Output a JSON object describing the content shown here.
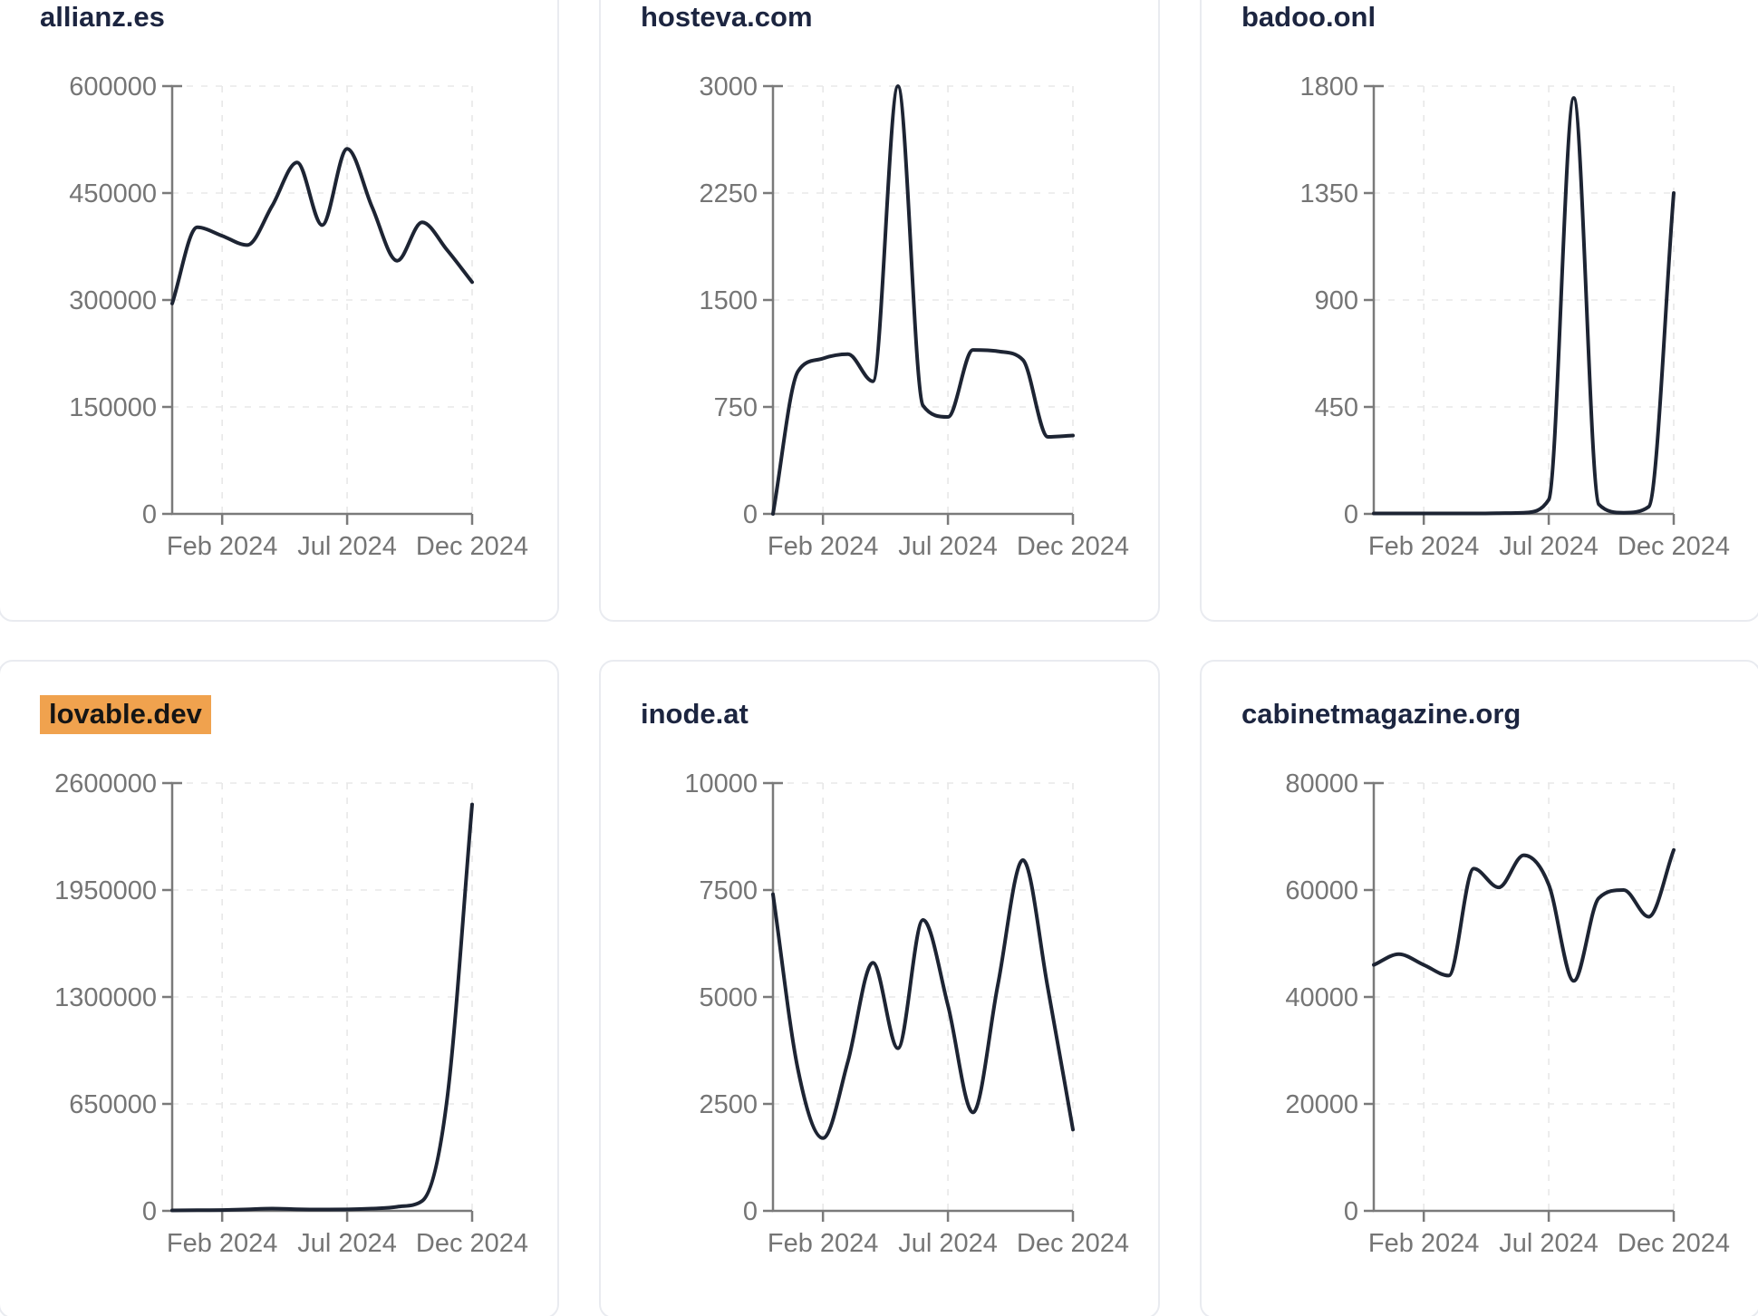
{
  "style": {
    "page_background": "#ffffff",
    "card_background": "#ffffff",
    "card_border_color": "#e9ebf0",
    "title_color": "#1c2540",
    "highlight_background": "#f0a24e",
    "highlight_text_color": "#151515",
    "line_color": "#1d2433",
    "axis_color": "#7a7a7a",
    "tick_label_color": "#757575",
    "grid_color": "#e8e8e8"
  },
  "chart_data": [
    {
      "type": "line",
      "title": "allianz.es",
      "highlighted": false,
      "x": [
        "2023-12",
        "2024-01",
        "2024-02",
        "2024-03",
        "2024-04",
        "2024-05",
        "2024-06",
        "2024-07",
        "2024-08",
        "2024-09",
        "2024-10",
        "2024-11",
        "2024-12"
      ],
      "values": [
        295000,
        402000,
        390000,
        377000,
        432000,
        493000,
        405000,
        512000,
        430000,
        355000,
        409000,
        370000,
        325000
      ],
      "y_ticks": [
        0,
        150000,
        300000,
        450000,
        600000
      ],
      "ylim": [
        0,
        600000
      ],
      "x_tick_labels": [
        "Feb 2024",
        "Jul 2024",
        "Dec 2024"
      ],
      "x_tick_positions": [
        2,
        7,
        12
      ],
      "grid": "dashed",
      "legend": "none"
    },
    {
      "type": "line",
      "title": "hosteva.com",
      "highlighted": false,
      "x": [
        "2023-12",
        "2024-01",
        "2024-02",
        "2024-03",
        "2024-04",
        "2024-05",
        "2024-06",
        "2024-07",
        "2024-08",
        "2024-09",
        "2024-10",
        "2024-11",
        "2024-12"
      ],
      "values": [
        0,
        1000,
        1090,
        1120,
        930,
        3000,
        760,
        680,
        1150,
        1140,
        1080,
        540,
        550
      ],
      "y_ticks": [
        0,
        750,
        1500,
        2250,
        3000
      ],
      "ylim": [
        0,
        3000
      ],
      "x_tick_labels": [
        "Feb 2024",
        "Jul 2024",
        "Dec 2024"
      ],
      "x_tick_positions": [
        2,
        7,
        12
      ],
      "grid": "dashed",
      "legend": "none"
    },
    {
      "type": "line",
      "title": "badoo.onl",
      "highlighted": false,
      "x": [
        "2023-12",
        "2024-01",
        "2024-02",
        "2024-03",
        "2024-04",
        "2024-05",
        "2024-06",
        "2024-07",
        "2024-08",
        "2024-09",
        "2024-10",
        "2024-11",
        "2024-12"
      ],
      "values": [
        2,
        2,
        2,
        2,
        2,
        3,
        5,
        60,
        1750,
        40,
        5,
        30,
        1350
      ],
      "y_ticks": [
        0,
        450,
        900,
        1350,
        1800
      ],
      "ylim": [
        0,
        1800
      ],
      "x_tick_labels": [
        "Feb 2024",
        "Jul 2024",
        "Dec 2024"
      ],
      "x_tick_positions": [
        2,
        7,
        12
      ],
      "grid": "dashed",
      "legend": "none"
    },
    {
      "type": "line",
      "title": "lovable.dev",
      "highlighted": true,
      "x": [
        "2023-12",
        "2024-01",
        "2024-02",
        "2024-03",
        "2024-04",
        "2024-05",
        "2024-06",
        "2024-07",
        "2024-08",
        "2024-09",
        "2024-10",
        "2024-11",
        "2024-12"
      ],
      "values": [
        3000,
        4000,
        5000,
        9000,
        14000,
        10000,
        8000,
        9000,
        14000,
        25000,
        60000,
        680000,
        2470000
      ],
      "y_ticks": [
        0,
        650000,
        1300000,
        1950000,
        2600000
      ],
      "ylim": [
        0,
        2600000
      ],
      "x_tick_labels": [
        "Feb 2024",
        "Jul 2024",
        "Dec 2024"
      ],
      "x_tick_positions": [
        2,
        7,
        12
      ],
      "grid": "dashed",
      "legend": "none"
    },
    {
      "type": "line",
      "title": "inode.at",
      "highlighted": false,
      "x": [
        "2023-12",
        "2024-01",
        "2024-02",
        "2024-03",
        "2024-04",
        "2024-05",
        "2024-06",
        "2024-07",
        "2024-08",
        "2024-09",
        "2024-10",
        "2024-11",
        "2024-12"
      ],
      "values": [
        7400,
        3300,
        1700,
        3500,
        5800,
        3800,
        6800,
        4800,
        2300,
        5300,
        8200,
        5200,
        1900
      ],
      "y_ticks": [
        0,
        2500,
        5000,
        7500,
        10000
      ],
      "ylim": [
        0,
        10000
      ],
      "x_tick_labels": [
        "Feb 2024",
        "Jul 2024",
        "Dec 2024"
      ],
      "x_tick_positions": [
        2,
        7,
        12
      ],
      "grid": "dashed",
      "legend": "none"
    },
    {
      "type": "line",
      "title": "cabinetmagazine.org",
      "highlighted": false,
      "x": [
        "2023-12",
        "2024-01",
        "2024-02",
        "2024-03",
        "2024-04",
        "2024-05",
        "2024-06",
        "2024-07",
        "2024-08",
        "2024-09",
        "2024-10",
        "2024-11",
        "2024-12"
      ],
      "values": [
        46000,
        48000,
        46000,
        44000,
        64000,
        60500,
        66500,
        61000,
        43000,
        58500,
        60000,
        55000,
        67500
      ],
      "y_ticks": [
        0,
        20000,
        40000,
        60000,
        80000
      ],
      "ylim": [
        0,
        80000
      ],
      "x_tick_labels": [
        "Feb 2024",
        "Jul 2024",
        "Dec 2024"
      ],
      "x_tick_positions": [
        2,
        7,
        12
      ],
      "grid": "dashed",
      "legend": "none"
    }
  ]
}
